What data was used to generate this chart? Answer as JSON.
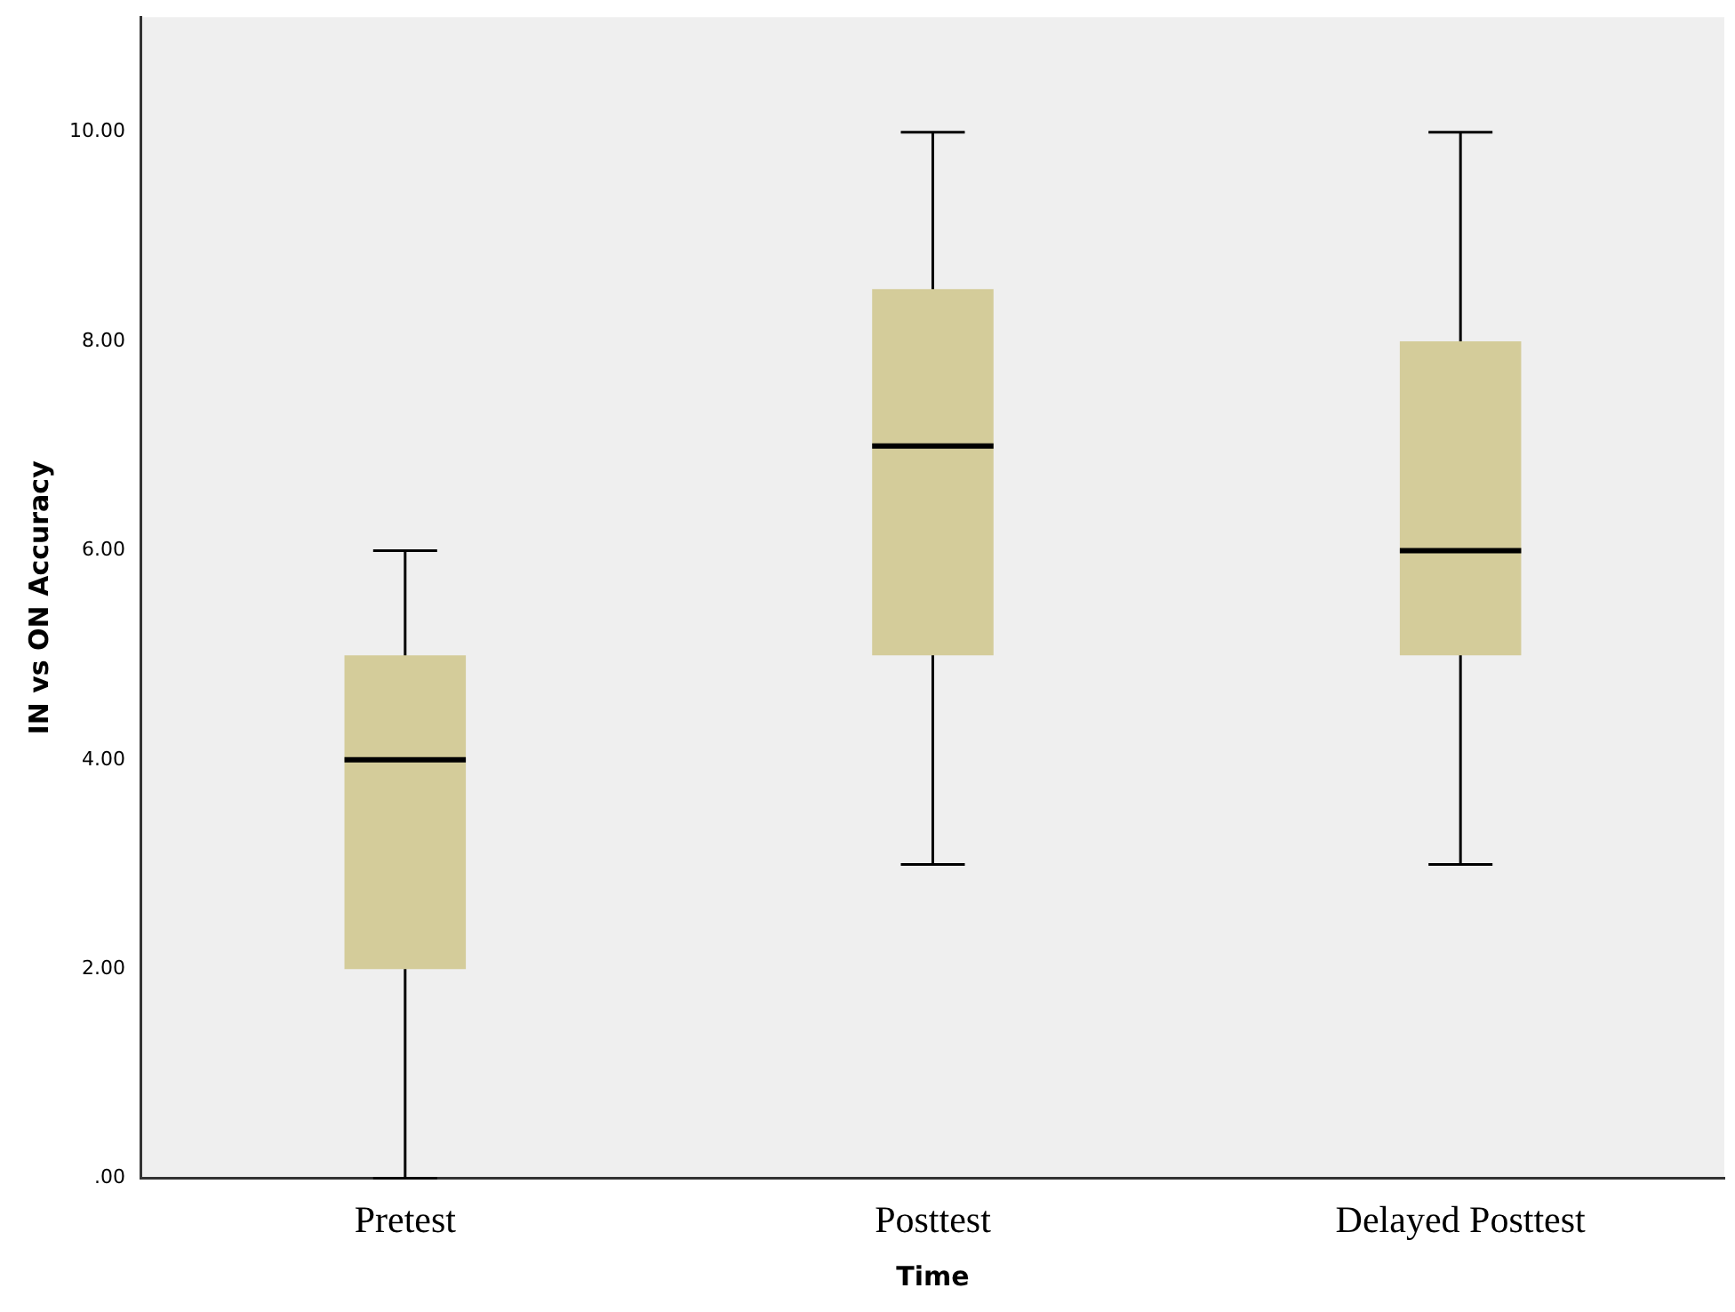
{
  "chart_data": {
    "type": "box",
    "xlabel": "Time",
    "ylabel": "IN vs ON Accuracy",
    "categories": [
      "Pretest",
      "Posttest",
      "Delayed Posttest"
    ],
    "series": [
      {
        "color": "#d4cc9a",
        "boxes": [
          {
            "low": 0,
            "q1": 2,
            "median": 4,
            "q3": 5,
            "high": 6
          },
          {
            "low": 3,
            "q1": 5,
            "median": 7,
            "q3": 8.5,
            "high": 10
          },
          {
            "low": 3,
            "q1": 5,
            "median": 6,
            "q3": 8,
            "high": 10
          }
        ]
      }
    ],
    "ylim": [
      0,
      11.1
    ],
    "yticks": [
      {
        "value": 0,
        "label": ".00"
      },
      {
        "value": 2,
        "label": "2.00"
      },
      {
        "value": 4,
        "label": "4.00"
      },
      {
        "value": 6,
        "label": "6.00"
      },
      {
        "value": 8,
        "label": "8.00"
      },
      {
        "value": 10,
        "label": "10.00"
      }
    ],
    "grid": false,
    "legend": false
  }
}
